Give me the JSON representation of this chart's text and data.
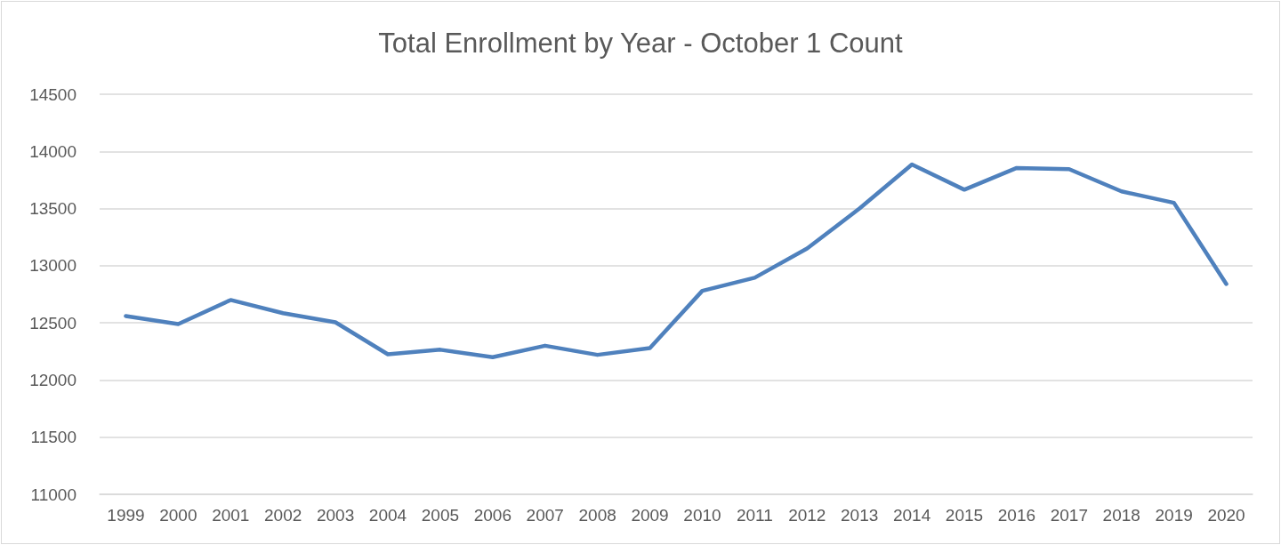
{
  "chart_data": {
    "type": "line",
    "title": "Total Enrollment by Year - October 1 Count",
    "categories": [
      "1999",
      "2000",
      "2001",
      "2002",
      "2003",
      "2004",
      "2005",
      "2006",
      "2007",
      "2008",
      "2009",
      "2010",
      "2011",
      "2012",
      "2013",
      "2014",
      "2015",
      "2016",
      "2017",
      "2018",
      "2019",
      "2020"
    ],
    "series": [
      {
        "color": "#4f81bd",
        "values": [
          12560,
          12490,
          12700,
          12585,
          12505,
          12225,
          12265,
          12200,
          12300,
          12220,
          12280,
          12780,
          12895,
          13150,
          13500,
          13885,
          13665,
          13855,
          13845,
          13650,
          13550,
          12840
        ]
      }
    ],
    "ylim": [
      11000,
      14500
    ],
    "yticks": [
      11000,
      11500,
      12000,
      12500,
      13000,
      13500,
      14000,
      14500
    ],
    "grid": "y",
    "marker": "none",
    "line_style": "solid"
  }
}
